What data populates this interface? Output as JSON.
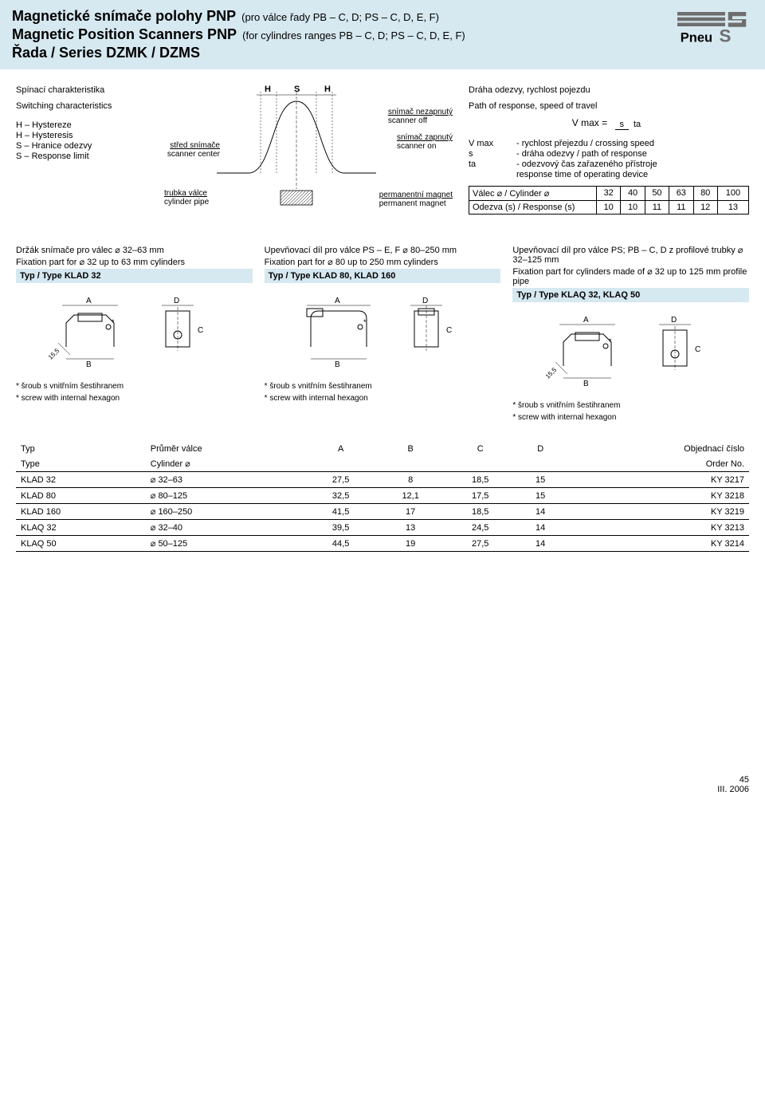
{
  "header": {
    "title1_cz": "Magnetické snímače polohy PNP",
    "title1_en": "Magnetic Position Scanners PNP",
    "sub1_cz": "(pro válce řady PB – C, D; PS – C, D, E, F)",
    "sub1_en": "(for cylindres ranges PB – C, D; PS – C, D, E, F)",
    "series": "Řada / Series  DZMK / DZMS",
    "logo_text": "Pneu"
  },
  "switching": {
    "heading_cz": "Spínací charakteristika",
    "heading_en": "Switching characteristics",
    "legend": [
      "H – Hystereze",
      "H – Hysteresis",
      "S – Hranice odezvy",
      "S – Response limit"
    ],
    "diagram": {
      "H": "H",
      "S": "S",
      "scanner_off_cz": "snímač nezapnutý",
      "scanner_off_en": "scanner off",
      "scanner_on_cz": "snímač zapnutý",
      "scanner_on_en": "scanner on",
      "center_cz": "střed snímače",
      "center_en": "scanner center",
      "pipe_cz": "trubka válce",
      "pipe_en": "cylinder pipe",
      "magnet_cz": "permanentní magnet",
      "magnet_en": "permanent magnet"
    }
  },
  "response": {
    "heading_cz": "Dráha odezvy, rychlost pojezdu",
    "heading_en": "Path of response, speed of travel",
    "vmax_label": "V max =",
    "num": "s",
    "den": "ta",
    "defs": [
      {
        "sym": "V max",
        "txt": "- rychlost přejezdu / crossing speed"
      },
      {
        "sym": "s",
        "txt": "- dráha odezvy / path of response"
      },
      {
        "sym": "ta",
        "txt": "- odezvový čas zařazeného přístroje"
      },
      {
        "sym": "",
        "txt": "  response time of operating device"
      }
    ],
    "table": {
      "row1_label": "Válec ⌀ / Cylinder ⌀",
      "row1": [
        "32",
        "40",
        "50",
        "63",
        "80",
        "100"
      ],
      "row2_label": "Odezva (s) / Response (s)",
      "row2": [
        "10",
        "10",
        "11",
        "11",
        "12",
        "13"
      ]
    }
  },
  "cards": [
    {
      "head_cz": "Držák snímače pro válec ⌀ 32–63 mm",
      "head_en": "Fixation part for ⌀ 32 up to 63 mm cylinders",
      "type": "Typ / Type KLAD 32",
      "note_cz": "* šroub s vnitřním šestihranem",
      "note_en": "* screw with internal hexagon",
      "labels": {
        "A": "A",
        "B": "B",
        "C": "C",
        "D": "D",
        "ang": "15,5"
      }
    },
    {
      "head_cz": "Upevňovací díl pro válce PS – E, F  ⌀ 80–250 mm",
      "head_en": "Fixation part for ⌀ 80 up to 250 mm cylinders",
      "type": "Typ / Type KLAD 80, KLAD 160",
      "note_cz": "* šroub s vnitřním šestihranem",
      "note_en": "* screw with internal hexagon",
      "labels": {
        "A": "A",
        "B": "B",
        "C": "C",
        "D": "D"
      }
    },
    {
      "head_cz": "Upevňovací díl pro válce PS; PB – C, D z profilové trubky ⌀ 32–125 mm",
      "head_en": "Fixation part for cylinders made of ⌀ 32 up to 125 mm profile pipe",
      "type": "Typ / Type KLAQ 32, KLAQ 50",
      "note_cz": "* šroub s vnitřním šestihranem",
      "note_en": "* screw with internal hexagon",
      "labels": {
        "A": "A",
        "B": "B",
        "C": "C",
        "D": "D",
        "ang": "15,5"
      }
    }
  ],
  "dim_table": {
    "head1": [
      "Typ",
      "Průměr válce",
      "A",
      "B",
      "C",
      "D",
      "Objednací číslo"
    ],
    "head2": [
      "Type",
      "Cylinder ⌀",
      "",
      "",
      "",
      "",
      "Order No."
    ],
    "rows": [
      [
        "KLAD 32",
        "⌀ 32–63",
        "27,5",
        "8",
        "18,5",
        "15",
        "KY 3217"
      ],
      [
        "KLAD 80",
        "⌀ 80–125",
        "32,5",
        "12,1",
        "17,5",
        "15",
        "KY 3218"
      ],
      [
        "KLAD 160",
        "⌀ 160–250",
        "41,5",
        "17",
        "18,5",
        "14",
        "KY 3219"
      ],
      [
        "KLAQ 32",
        "⌀ 32–40",
        "39,5",
        "13",
        "24,5",
        "14",
        "KY 3213"
      ],
      [
        "KLAQ 50",
        "⌀ 50–125",
        "44,5",
        "19",
        "27,5",
        "14",
        "KY 3214"
      ]
    ]
  },
  "footer": {
    "page": "45",
    "date": "III. 2006"
  },
  "colors": {
    "band": "#d6e8f0",
    "logo_gray": "#6e6e6e",
    "text": "#000000"
  }
}
